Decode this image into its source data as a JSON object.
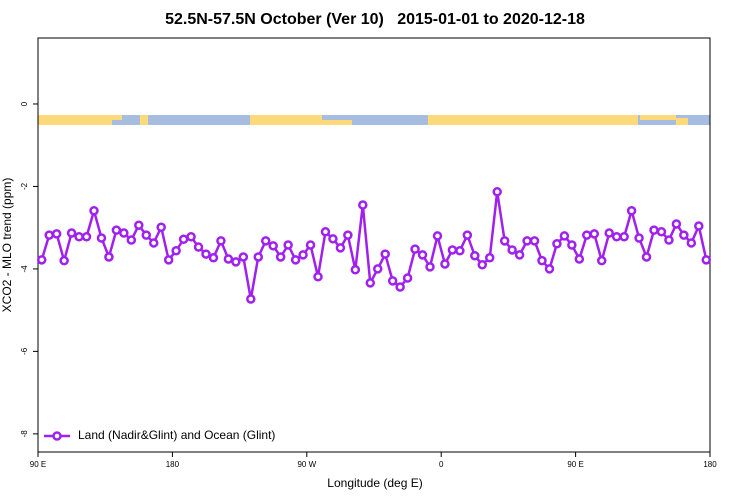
{
  "chart_data": {
    "type": "line",
    "title": "52.5N-57.5N October (Ver 10)   2015-01-01 to 2020-12-18",
    "xlabel": "Longitude (deg E)",
    "ylabel": "XCO2 - MLO trend (ppm)",
    "xlim": [
      90,
      540
    ],
    "xticks": [
      {
        "value": 90,
        "label": "90 E"
      },
      180,
      {
        "value": 270,
        "label": "90 W"
      },
      {
        "value": 360,
        "label": "0"
      },
      {
        "value": 450,
        "label": "90 E"
      },
      {
        "value": 540,
        "label": "180"
      }
    ],
    "ylim": [
      -8.44,
      1.6
    ],
    "yticks": [
      0,
      -2,
      -4,
      -6,
      -8
    ],
    "legend": "bottom-left",
    "series": [
      {
        "name": "Land (Nadir&Glint) and Ocean (Glint)",
        "color": "#a020f0",
        "x": [
          92.5,
          97.5,
          102.5,
          107.5,
          112.5,
          117.5,
          122.5,
          127.5,
          132.5,
          137.5,
          142.5,
          147.5,
          152.5,
          157.5,
          162.5,
          167.5,
          172.5,
          177.5,
          182.5,
          187.5,
          192.5,
          197.5,
          202.5,
          207.5,
          212.5,
          217.5,
          222.5,
          227.5,
          232.5,
          237.5,
          242.5,
          247.5,
          252.5,
          257.5,
          262.5,
          267.5,
          272.5,
          277.5,
          282.5,
          287.5,
          292.5,
          297.5,
          302.5,
          307.5,
          312.5,
          317.5,
          322.5,
          327.5,
          332.5,
          337.5,
          342.5,
          347.5,
          352.5,
          357.5,
          362.5,
          367.5,
          372.5,
          377.5,
          382.5,
          387.5,
          392.5,
          397.5,
          402.5,
          407.5,
          412.5,
          417.5,
          422.5,
          427.5,
          432.5,
          437.5,
          442.5,
          447.5,
          452.5,
          457.5,
          462.5,
          467.5,
          472.5,
          477.5,
          482.5,
          487.5,
          492.5,
          497.5,
          502.5,
          507.5,
          512.5,
          517.5,
          522.5,
          527.5,
          532.5,
          537.5
        ],
        "values": [
          -3.78,
          -3.18,
          -3.15,
          -3.8,
          -3.13,
          -3.22,
          -3.22,
          -2.59,
          -3.25,
          -3.71,
          -3.06,
          -3.13,
          -3.3,
          -2.94,
          -3.18,
          -3.37,
          -2.99,
          -3.78,
          -3.56,
          -3.28,
          -3.22,
          -3.47,
          -3.64,
          -3.73,
          -3.32,
          -3.76,
          -3.83,
          -3.71,
          -4.73,
          -3.71,
          -3.32,
          -3.44,
          -3.71,
          -3.42,
          -3.78,
          -3.66,
          -3.42,
          -4.19,
          -3.1,
          -3.27,
          -3.49,
          -3.18,
          -4.02,
          -2.45,
          -4.34,
          -4.0,
          -3.64,
          -4.29,
          -4.44,
          -4.22,
          -3.52,
          -3.66,
          -3.95,
          -3.2,
          -3.88,
          -3.54,
          -3.56,
          -3.18,
          -3.68,
          -3.9,
          -3.73,
          -2.13,
          -3.32,
          -3.54,
          -3.66,
          -3.32,
          -3.32,
          -3.8,
          -4.0,
          -3.39,
          -3.2,
          -3.42,
          -3.76,
          -3.18,
          -3.15,
          -3.8,
          -3.13,
          -3.22,
          -3.22,
          -2.59,
          -3.25,
          -3.71,
          -3.06,
          -3.1,
          -3.3,
          -2.91,
          -3.18,
          -3.37,
          -2.96,
          -3.78
        ]
      }
    ]
  }
}
